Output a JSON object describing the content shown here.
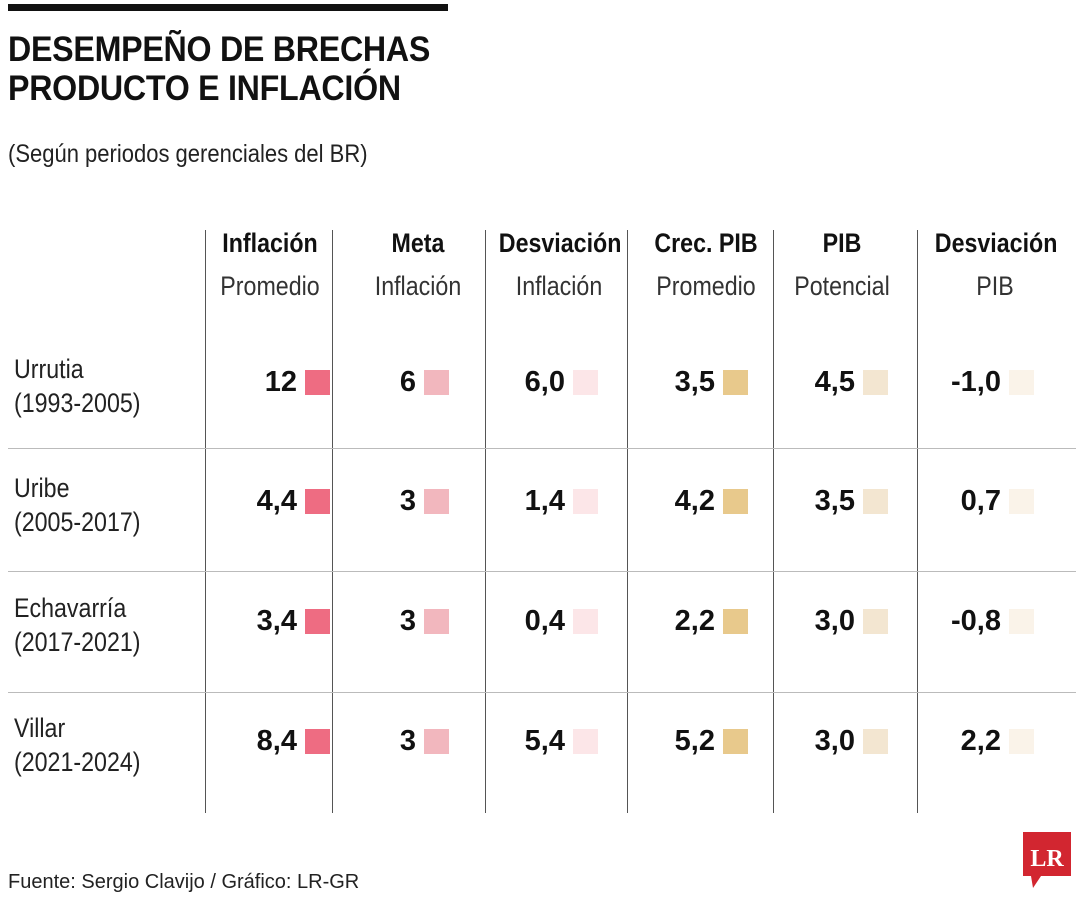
{
  "title": {
    "line1": "DESEMPEÑO DE BRECHAS",
    "line2": "PRODUCTO E INFLACIÓN"
  },
  "subtitle": "(Según periodos gerenciales del BR)",
  "source": "Fuente: Sergio Clavijo / Gráfico: LR-GR",
  "logo_text": "LR",
  "chart_data": {
    "type": "table",
    "title": "DESEMPEÑO DE BRECHAS PRODUCTO E INFLACIÓN",
    "subtitle": "(Según periodos gerenciales del BR)",
    "columns": [
      {
        "line1": "Inflación",
        "line2": "Promedio",
        "color": "#ee6c82"
      },
      {
        "line1": "Meta",
        "line2": "Inflación",
        "color": "#f2b7be"
      },
      {
        "line1": "Desviación",
        "line2": "Inflación",
        "color": "#fce6e8"
      },
      {
        "line1": "Crec. PIB",
        "line2": "Promedio",
        "color": "#e8c98c"
      },
      {
        "line1": "PIB",
        "line2": "Potencial",
        "color": "#f3e6d1"
      },
      {
        "line1": "Desviación",
        "line2": "PIB",
        "color": "#faf3e9"
      }
    ],
    "rows": [
      {
        "name": "Urrutia",
        "period": "(1993-2005)",
        "values": [
          "12",
          "6",
          "6,0",
          "3,5",
          "4,5",
          "-1,0"
        ]
      },
      {
        "name": "Uribe",
        "period": "(2005-2017)",
        "values": [
          "4,4",
          "3",
          "1,4",
          "4,2",
          "3,5",
          "0,7"
        ]
      },
      {
        "name": "Echavarría",
        "period": "(2017-2021)",
        "values": [
          "3,4",
          "3",
          "0,4",
          "2,2",
          "3,0",
          "-0,8"
        ]
      },
      {
        "name": "Villar",
        "period": "(2021-2024)",
        "values": [
          "8,4",
          "3",
          "5,4",
          "5,2",
          "3,0",
          "2,2"
        ]
      }
    ]
  }
}
